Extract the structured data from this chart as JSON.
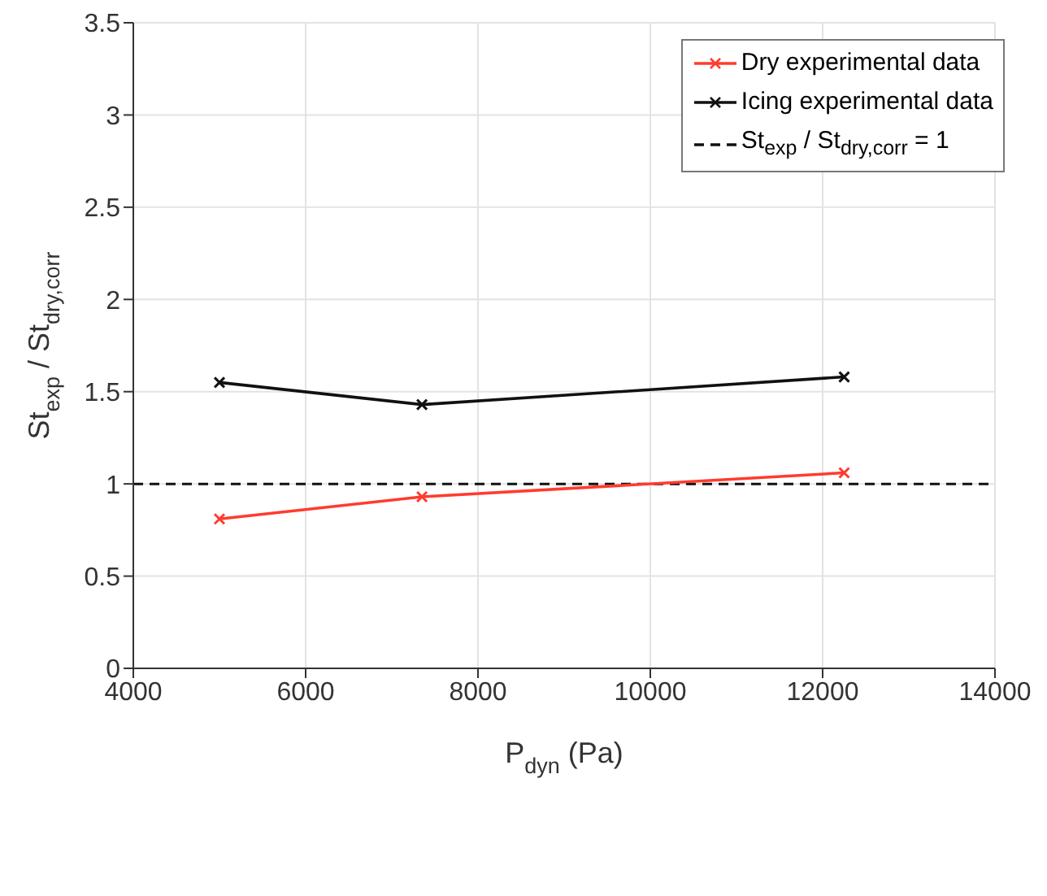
{
  "chart_data": {
    "type": "line",
    "xlabel": "P$_{dyn}$ (Pa)",
    "ylabel": "St$_{exp}$ / St$_{dry,corr}$",
    "xlim": [
      4000,
      14000
    ],
    "xticks": [
      4000,
      6000,
      8000,
      10000,
      12000,
      14000
    ],
    "ylim": [
      0,
      3.5
    ],
    "yticks": [
      0,
      0.5,
      1,
      1.5,
      2,
      2.5,
      3,
      3.5
    ],
    "grid": true,
    "legend": "top right",
    "marker": "cross",
    "series": [
      {
        "name": "Dry experimental data",
        "color": "#ff3b2f",
        "x": [
          5000,
          7350,
          12250
        ],
        "values": [
          0.81,
          0.93,
          1.06
        ]
      },
      {
        "name": "Icing experimental data",
        "color": "#111111",
        "x": [
          5000,
          7350,
          12250
        ],
        "values": [
          1.55,
          1.43,
          1.58
        ]
      }
    ],
    "ref_lines": [
      {
        "axis": "y",
        "value": 1,
        "label": "St$_{exp}$ / St$_{dry,corr}$ = 1",
        "color": "#111111",
        "line_style": "dashed"
      }
    ]
  }
}
